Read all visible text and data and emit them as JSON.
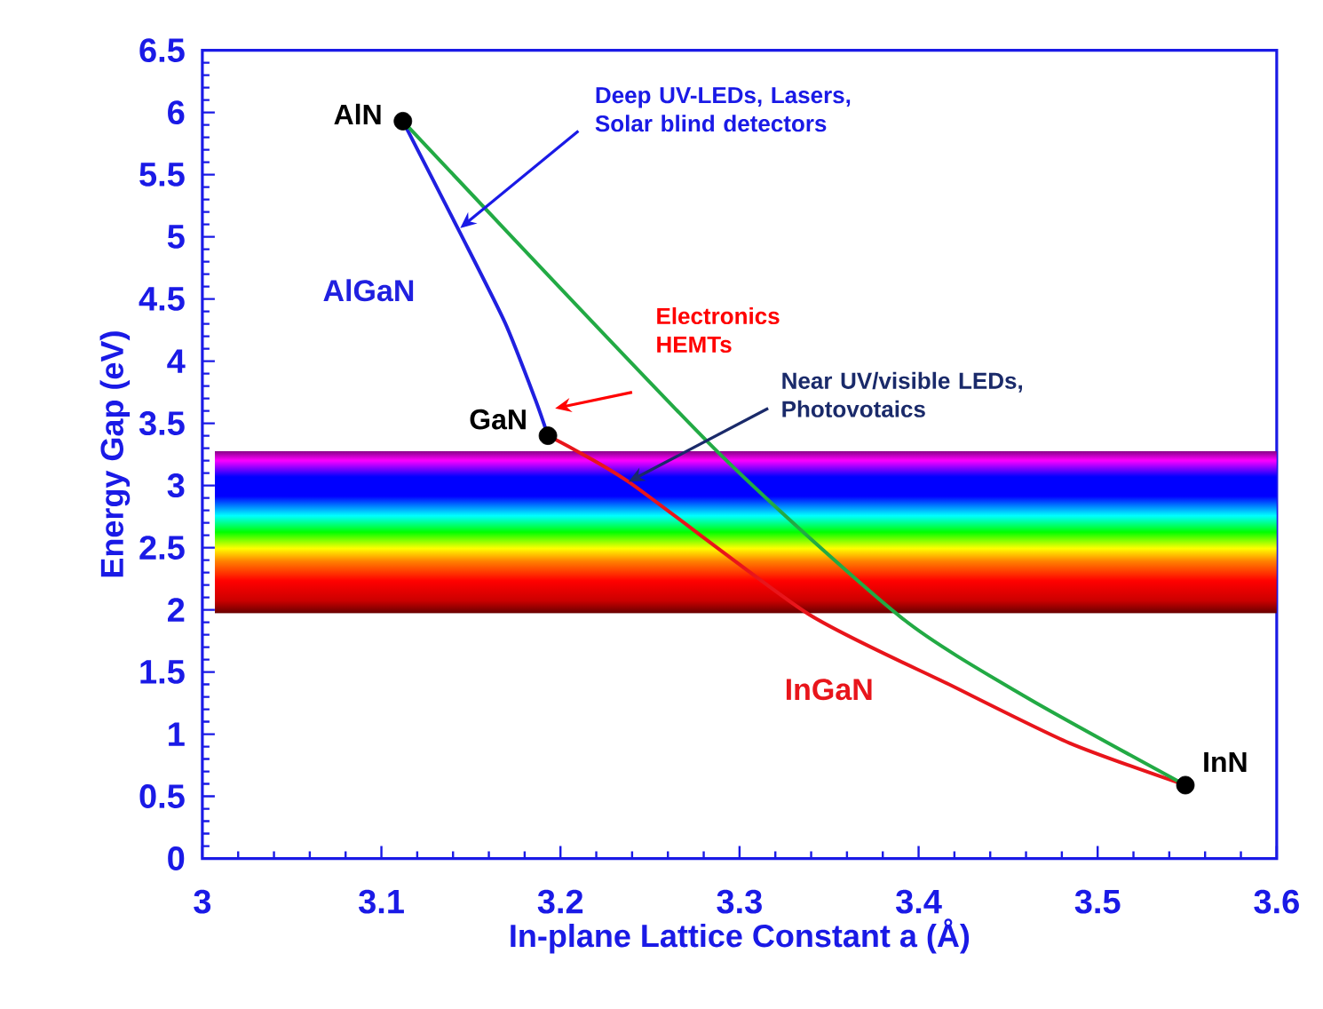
{
  "chart_data": {
    "type": "line",
    "xlabel": "In-plane Lattice Constant a (Å)",
    "ylabel": "Energy Gap (eV)",
    "xlim": [
      3,
      3.6
    ],
    "ylim": [
      0,
      6.5
    ],
    "xticks": [
      3,
      3.1,
      3.2,
      3.3,
      3.4,
      3.5,
      3.6
    ],
    "yticks": [
      0,
      0.5,
      1,
      1.5,
      2,
      2.5,
      3,
      3.5,
      4,
      4.5,
      5,
      5.5,
      6,
      6.5
    ],
    "series": [
      {
        "name": "AlGaN",
        "color": "#2020e0",
        "marker": "none",
        "x": [
          3.112,
          3.144,
          3.169,
          3.186,
          3.193
        ],
        "values": [
          5.93,
          5.03,
          4.31,
          3.69,
          3.4
        ]
      },
      {
        "name": "InGaN",
        "color": "#e8151b",
        "marker": "none",
        "x": [
          3.193,
          3.238,
          3.338,
          3.417,
          3.484,
          3.549
        ],
        "values": [
          3.4,
          3.03,
          1.97,
          1.4,
          0.93,
          0.59
        ]
      },
      {
        "color": "#22aa44",
        "marker": "none",
        "x": [
          3.112,
          3.285,
          3.391,
          3.461,
          3.549
        ],
        "values": [
          5.93,
          3.31,
          1.93,
          1.29,
          0.59
        ]
      },
      {
        "type": "scatter",
        "color": "#000000",
        "marker": "circle",
        "x": [
          3.112,
          3.193,
          3.549
        ],
        "values": [
          5.93,
          3.4,
          0.59
        ]
      }
    ],
    "bands": [
      {
        "axis": "y",
        "from": 1.97,
        "to": 3.28
      }
    ],
    "annotations": [
      {
        "text": "AlN",
        "x": 3.112,
        "y": 5.93
      },
      {
        "text": "GaN",
        "x": 3.193,
        "y": 3.4
      },
      {
        "text": "InN",
        "x": 3.549,
        "y": 0.59
      },
      {
        "text": "Deep UV-LEDs, Lasers, Solar blind detectors",
        "x": 3.144,
        "y": 5.07
      },
      "Electronics HEMTs",
      {
        "text": "Near UV/visible LEDs, Photovotaics",
        "x": 3.238,
        "y": 3.03
      }
    ]
  }
}
